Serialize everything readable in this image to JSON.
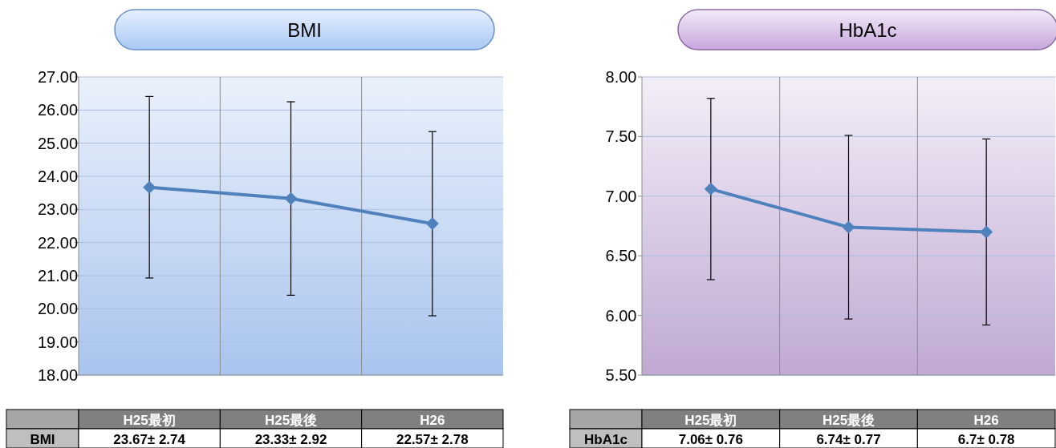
{
  "chart_data": [
    {
      "type": "line",
      "title": "BMI",
      "categories": [
        "H25最初",
        "H25最後",
        "H26"
      ],
      "series": [
        {
          "name": "BMI",
          "color": "#4f81bd",
          "values": [
            23.67,
            23.33,
            22.57
          ],
          "errors": [
            2.74,
            2.92,
            2.78
          ],
          "value_labels": [
            "23.67± 2.74",
            "23.33± 2.92",
            "22.57± 2.78"
          ]
        }
      ],
      "ylim": [
        18,
        27
      ],
      "yticks": [
        {
          "value": 18,
          "label": "18.00"
        },
        {
          "value": 19,
          "label": "19.00"
        },
        {
          "value": 20,
          "label": "20.00"
        },
        {
          "value": 21,
          "label": "21.00"
        },
        {
          "value": 22,
          "label": "22.00"
        },
        {
          "value": 23,
          "label": "23.00"
        },
        {
          "value": 24,
          "label": "24.00"
        },
        {
          "value": 25,
          "label": "25.00"
        },
        {
          "value": 26,
          "label": "26.00"
        },
        {
          "value": 27,
          "label": "27.00"
        }
      ],
      "grid": true,
      "marker": "diamond",
      "line_style": "solid"
    },
    {
      "type": "line",
      "title": "HbA1c",
      "categories": [
        "H25最初",
        "H25最後",
        "H26"
      ],
      "series": [
        {
          "name": "HbA1c",
          "color": "#4f81bd",
          "values": [
            7.06,
            6.74,
            6.7
          ],
          "errors": [
            0.76,
            0.77,
            0.78
          ],
          "value_labels": [
            "7.06± 0.76",
            "6.74± 0.77",
            "6.7± 0.78"
          ]
        }
      ],
      "ylim": [
        5.5,
        8
      ],
      "yticks": [
        {
          "value": 5.5,
          "label": "5.50"
        },
        {
          "value": 6,
          "label": "6.00"
        },
        {
          "value": 6.5,
          "label": "6.50"
        },
        {
          "value": 7,
          "label": "7.00"
        },
        {
          "value": 7.5,
          "label": "7.50"
        },
        {
          "value": 8,
          "label": "8.00"
        }
      ],
      "grid": true,
      "marker": "diamond",
      "line_style": "solid"
    }
  ]
}
